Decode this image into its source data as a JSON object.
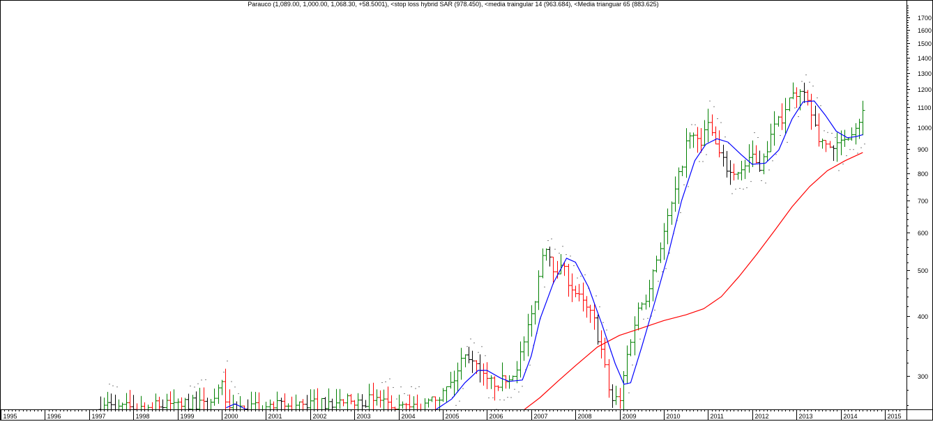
{
  "chart_data": {
    "type": "ohlc",
    "title": "Parauco (1,089.00, 1,000.00, 1,068.30, +58.5001), <stop loss hybrid SAR (978.450), <media traingular 14 (963.684), <Media trianguar 65 (883.625)",
    "y_scale": "log",
    "ylim": [
      255,
      1850
    ],
    "xlim": [
      1995.0,
      2015.4
    ],
    "y_ticks": [
      300,
      400,
      500,
      600,
      700,
      800,
      900,
      1000,
      1100,
      1200,
      1300,
      1400,
      1500,
      1600,
      1700
    ],
    "x_ticks": [
      1995,
      1996,
      1997,
      1998,
      1999,
      2000,
      2001,
      2002,
      2003,
      2004,
      2005,
      2006,
      2007,
      2008,
      2009,
      2010,
      2011,
      2012,
      2013,
      2014,
      2015
    ],
    "colors": {
      "up": "#008000",
      "down": "#ff0000",
      "neutral": "#000000",
      "fast_ma": "#0000ff",
      "slow_ma": "#ff0000",
      "sar": "#000000"
    },
    "anchors": [
      {
        "t": 1997.3,
        "v": 255
      },
      {
        "t": 1997.4,
        "v": 260
      },
      {
        "t": 1997.6,
        "v": 256
      },
      {
        "t": 1999.3,
        "v": 262
      },
      {
        "t": 1999.7,
        "v": 258
      },
      {
        "t": 1999.9,
        "v": 275
      },
      {
        "t": 2000.0,
        "v": 285
      },
      {
        "t": 2000.1,
        "v": 270
      },
      {
        "t": 2000.2,
        "v": 262
      },
      {
        "t": 2000.4,
        "v": 255
      },
      {
        "t": 2003.6,
        "v": 268
      },
      {
        "t": 2003.8,
        "v": 258
      },
      {
        "t": 2004.5,
        "v": 255
      },
      {
        "t": 2004.7,
        "v": 262
      },
      {
        "t": 2005.0,
        "v": 276
      },
      {
        "t": 2005.3,
        "v": 300
      },
      {
        "t": 2005.5,
        "v": 340
      },
      {
        "t": 2005.8,
        "v": 305
      },
      {
        "t": 2006.0,
        "v": 290
      },
      {
        "t": 2006.3,
        "v": 292
      },
      {
        "t": 2006.6,
        "v": 305
      },
      {
        "t": 2006.8,
        "v": 340
      },
      {
        "t": 2007.0,
        "v": 400
      },
      {
        "t": 2007.15,
        "v": 470
      },
      {
        "t": 2007.3,
        "v": 580
      },
      {
        "t": 2007.5,
        "v": 510
      },
      {
        "t": 2007.75,
        "v": 495
      },
      {
        "t": 2007.95,
        "v": 455
      },
      {
        "t": 2008.2,
        "v": 420
      },
      {
        "t": 2008.4,
        "v": 395
      },
      {
        "t": 2008.6,
        "v": 335
      },
      {
        "t": 2008.8,
        "v": 265
      },
      {
        "t": 2009.0,
        "v": 270
      },
      {
        "t": 2009.2,
        "v": 345
      },
      {
        "t": 2009.4,
        "v": 410
      },
      {
        "t": 2009.6,
        "v": 445
      },
      {
        "t": 2009.8,
        "v": 520
      },
      {
        "t": 2010.0,
        "v": 600
      },
      {
        "t": 2010.3,
        "v": 760
      },
      {
        "t": 2010.55,
        "v": 960
      },
      {
        "t": 2010.8,
        "v": 930
      },
      {
        "t": 2011.0,
        "v": 1010
      },
      {
        "t": 2011.3,
        "v": 850
      },
      {
        "t": 2011.5,
        "v": 800
      },
      {
        "t": 2011.8,
        "v": 820
      },
      {
        "t": 2012.0,
        "v": 860
      },
      {
        "t": 2012.2,
        "v": 830
      },
      {
        "t": 2012.45,
        "v": 980
      },
      {
        "t": 2012.7,
        "v": 1060
      },
      {
        "t": 2012.9,
        "v": 1170
      },
      {
        "t": 2013.1,
        "v": 1180
      },
      {
        "t": 2013.3,
        "v": 1090
      },
      {
        "t": 2013.5,
        "v": 950
      },
      {
        "t": 2013.7,
        "v": 915
      },
      {
        "t": 2013.9,
        "v": 900
      },
      {
        "t": 2014.1,
        "v": 960
      },
      {
        "t": 2014.3,
        "v": 1000
      },
      {
        "t": 2014.5,
        "v": 1068
      }
    ],
    "fast_ma": [
      [
        2000.1,
        257
      ],
      [
        2000.3,
        262
      ],
      [
        2000.55,
        255
      ],
      [
        2004.85,
        255
      ],
      [
        2005.2,
        268
      ],
      [
        2005.5,
        290
      ],
      [
        2005.8,
        308
      ],
      [
        2006.0,
        308
      ],
      [
        2006.3,
        297
      ],
      [
        2006.5,
        292
      ],
      [
        2006.8,
        294
      ],
      [
        2007.0,
        330
      ],
      [
        2007.2,
        395
      ],
      [
        2007.5,
        470
      ],
      [
        2007.8,
        530
      ],
      [
        2008.0,
        520
      ],
      [
        2008.3,
        460
      ],
      [
        2008.6,
        385
      ],
      [
        2008.9,
        318
      ],
      [
        2009.1,
        288
      ],
      [
        2009.25,
        290
      ],
      [
        2009.5,
        345
      ],
      [
        2009.8,
        430
      ],
      [
        2010.1,
        540
      ],
      [
        2010.4,
        700
      ],
      [
        2010.7,
        850
      ],
      [
        2010.95,
        920
      ],
      [
        2011.2,
        945
      ],
      [
        2011.45,
        930
      ],
      [
        2011.75,
        875
      ],
      [
        2012.0,
        835
      ],
      [
        2012.3,
        840
      ],
      [
        2012.6,
        895
      ],
      [
        2012.9,
        1040
      ],
      [
        2013.15,
        1130
      ],
      [
        2013.4,
        1135
      ],
      [
        2013.65,
        1060
      ],
      [
        2013.9,
        980
      ],
      [
        2014.15,
        950
      ],
      [
        2014.35,
        955
      ],
      [
        2014.5,
        964
      ]
    ],
    "slow_ma": [
      [
        2006.85,
        255
      ],
      [
        2007.2,
        270
      ],
      [
        2007.6,
        292
      ],
      [
        2008.0,
        315
      ],
      [
        2008.5,
        345
      ],
      [
        2009.0,
        365
      ],
      [
        2009.5,
        378
      ],
      [
        2010.0,
        392
      ],
      [
        2010.5,
        403
      ],
      [
        2010.9,
        415
      ],
      [
        2011.3,
        440
      ],
      [
        2011.7,
        485
      ],
      [
        2012.1,
        540
      ],
      [
        2012.5,
        605
      ],
      [
        2012.9,
        680
      ],
      [
        2013.3,
        750
      ],
      [
        2013.7,
        810
      ],
      [
        2014.1,
        850
      ],
      [
        2014.5,
        884
      ]
    ]
  }
}
